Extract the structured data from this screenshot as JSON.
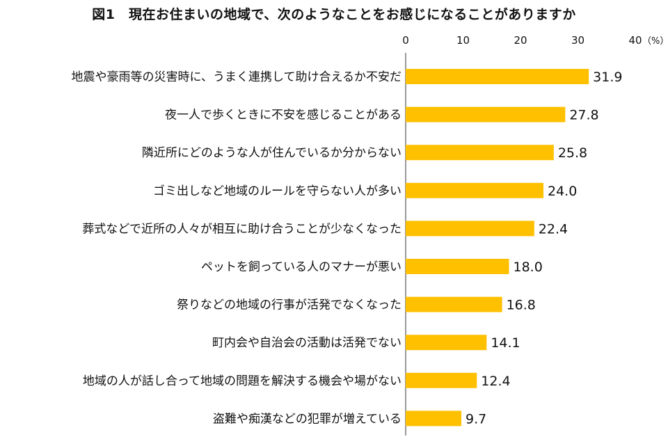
{
  "chart_data": {
    "type": "bar",
    "orientation": "horizontal",
    "title": "図1　現在お住まいの地域で、次のようなことをお感じになることがありますか",
    "unit": "（%）",
    "xlim": [
      0,
      40
    ],
    "ticks": [
      0,
      10,
      20,
      30,
      40
    ],
    "grid": false,
    "bar_color": "#ffc000",
    "categories": [
      "地震や豪雨等の災害時に、うまく連携して助け合えるか不安だ",
      "夜一人で歩くときに不安を感じることがある",
      "隣近所にどのような人が住んでいるか分からない",
      "ゴミ出しなど地域のルールを守らない人が多い",
      "葬式などで近所の人々が相互に助け合うことが少なくなった",
      "ペットを飼っている人のマナーが悪い",
      "祭りなどの地域の行事が活発でなくなった",
      "町内会や自治会の活動は活発でない",
      "地域の人が話し合って地域の問題を解決する機会や場がない",
      "盗難や痴漢などの犯罪が増えている"
    ],
    "values": [
      31.9,
      27.8,
      25.8,
      24.0,
      22.4,
      18.0,
      16.8,
      14.1,
      12.4,
      9.7
    ],
    "value_labels": [
      "31.9",
      "27.8",
      "25.8",
      "24.0",
      "22.4",
      "18.0",
      "16.8",
      "14.1",
      "12.4",
      "9.7"
    ]
  }
}
